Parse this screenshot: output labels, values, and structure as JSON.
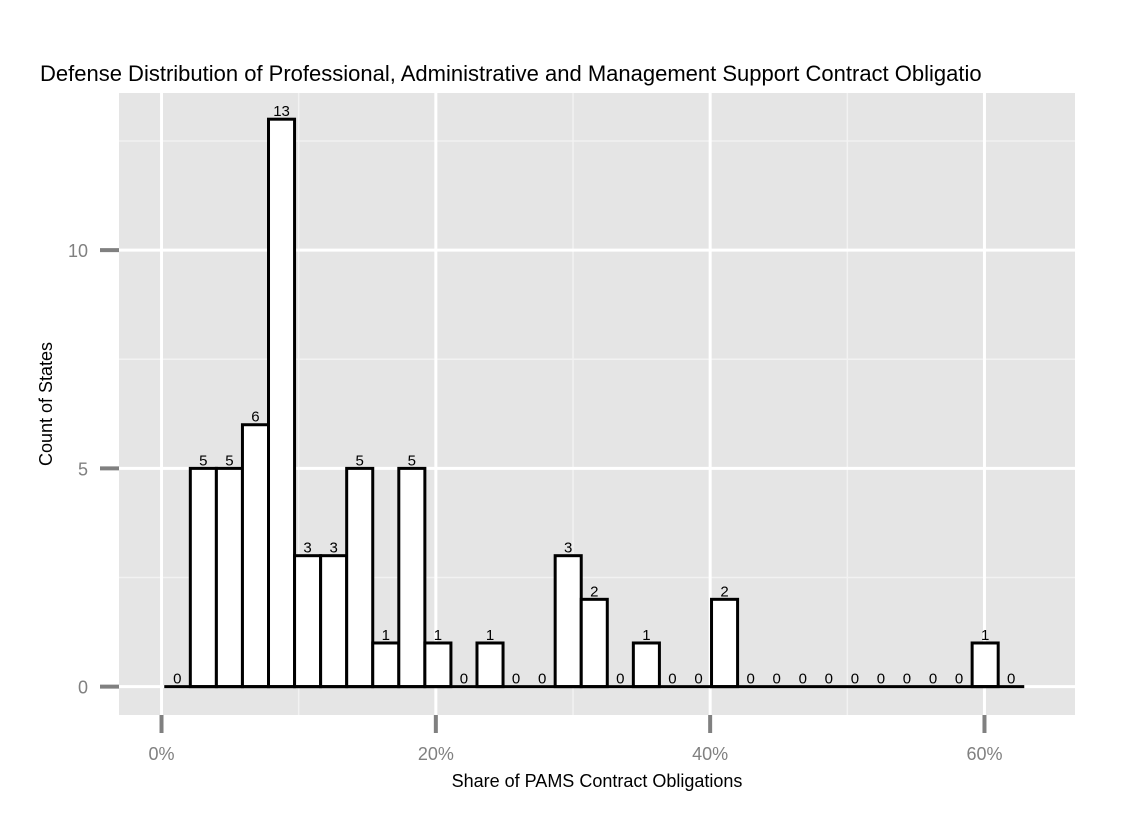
{
  "chart_data": {
    "type": "bar",
    "title": "Defense Distribution of Professional, Administrative and Management Support Contract Obligatio",
    "xlabel": "Share of PAMS Contract Obligations",
    "ylabel": "Count of States",
    "x_ticks": [
      "0%",
      "20%",
      "40%",
      "60%"
    ],
    "x_tick_values": [
      0,
      20,
      40,
      60
    ],
    "y_ticks": [
      "0",
      "5",
      "10"
    ],
    "y_tick_values": [
      0,
      5,
      10
    ],
    "xlim": [
      -3.1,
      66.6
    ],
    "ylim": [
      -0.65,
      13.6
    ],
    "bin_width": 1.9,
    "bin_start": 0.2,
    "values": [
      0,
      5,
      5,
      6,
      13,
      3,
      3,
      5,
      1,
      5,
      1,
      0,
      1,
      0,
      0,
      3,
      2,
      0,
      1,
      0,
      0,
      2,
      0,
      0,
      0,
      0,
      0,
      0,
      0,
      0,
      0,
      1,
      0
    ],
    "grid": true,
    "colors": {
      "panel_background": "#e5e5e5",
      "grid_major": "#ffffff",
      "grid_minor": "#f2f2f2",
      "bar_fill": "#ffffff",
      "bar_outline": "#000000",
      "tick_text": "#808080"
    }
  }
}
